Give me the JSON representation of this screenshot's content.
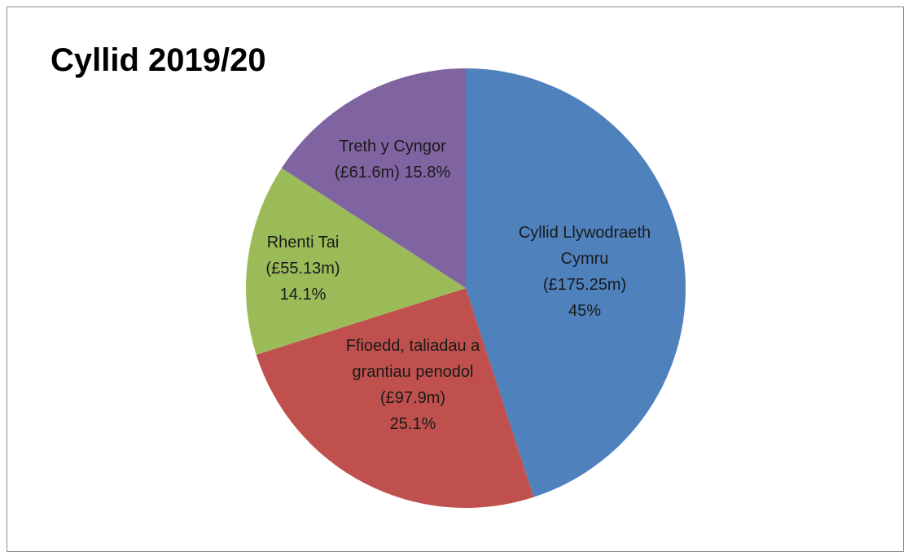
{
  "chart_data": {
    "type": "pie",
    "title": "Cyllid 2019/20",
    "categories": [
      "Cyllid Llywodraeth Cymru",
      "Ffioedd, taliadau a grantiau penodol",
      "Rhenti Tai",
      "Treth y Cyngor"
    ],
    "values": [
      45,
      25.1,
      14.1,
      15.8
    ],
    "value_labels": [
      "45%",
      "25.1%",
      "14.1%",
      "15.8%"
    ],
    "amounts": [
      175.25,
      97.9,
      55.13,
      61.6
    ],
    "amount_labels": [
      "(£175.25m)",
      "(£97.9m)",
      "(£55.13m)",
      "(£61.6m)"
    ],
    "colors": [
      "#4f81bd",
      "#c0504d",
      "#9bbb59",
      "#8064a2"
    ]
  }
}
